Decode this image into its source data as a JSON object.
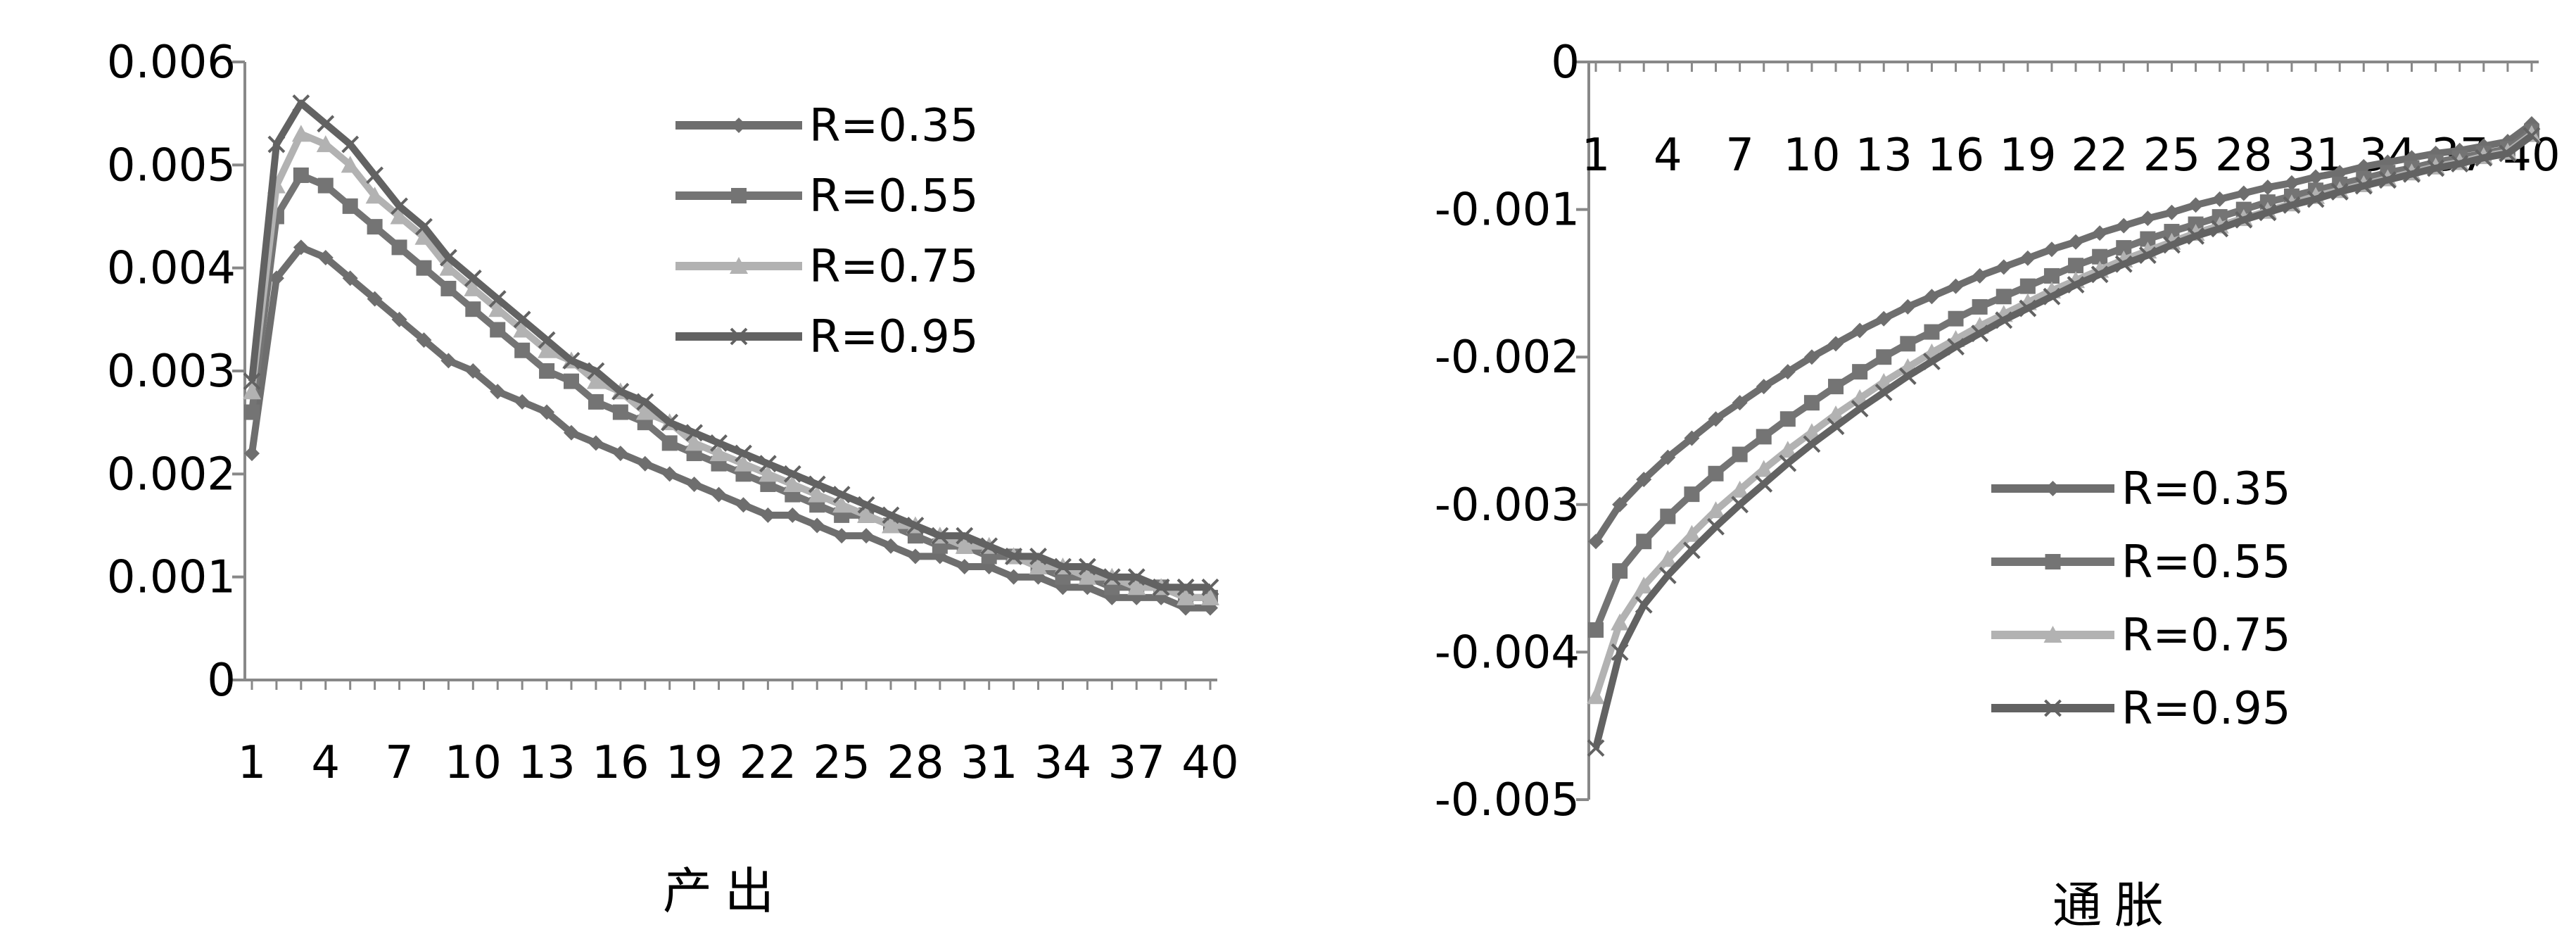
{
  "chart_data": [
    {
      "type": "line",
      "title": "",
      "xlabel": "产出",
      "ylabel": "",
      "ylim": [
        0,
        0.006
      ],
      "yticks": [
        "0",
        "0.001",
        "0.002",
        "0.003",
        "0.004",
        "0.005",
        "0.006"
      ],
      "xticks": [
        "1",
        "4",
        "7",
        "10",
        "13",
        "16",
        "19",
        "22",
        "25",
        "28",
        "31",
        "34",
        "37",
        "40"
      ],
      "x": [
        1,
        2,
        3,
        4,
        5,
        6,
        7,
        8,
        9,
        10,
        11,
        12,
        13,
        14,
        15,
        16,
        17,
        18,
        19,
        20,
        21,
        22,
        23,
        24,
        25,
        26,
        27,
        28,
        29,
        30,
        31,
        32,
        33,
        34,
        35,
        36,
        37,
        38,
        39,
        40
      ],
      "legend_position": "top-right",
      "series": [
        {
          "name": "R=0.35",
          "color": "#6e6e6e",
          "marker": "diamond",
          "values": [
            0.0022,
            0.0039,
            0.0042,
            0.0041,
            0.0039,
            0.0037,
            0.0035,
            0.0033,
            0.0031,
            0.003,
            0.0028,
            0.0027,
            0.0026,
            0.0024,
            0.0023,
            0.0022,
            0.0021,
            0.002,
            0.0019,
            0.0018,
            0.0017,
            0.0016,
            0.0016,
            0.0015,
            0.0014,
            0.0014,
            0.0013,
            0.0012,
            0.0012,
            0.0011,
            0.0011,
            0.001,
            0.001,
            0.0009,
            0.0009,
            0.0008,
            0.0008,
            0.0008,
            0.0007,
            0.0007
          ]
        },
        {
          "name": "R=0.55",
          "color": "#747474",
          "marker": "square",
          "values": [
            0.0026,
            0.0045,
            0.0049,
            0.0048,
            0.0046,
            0.0044,
            0.0042,
            0.004,
            0.0038,
            0.0036,
            0.0034,
            0.0032,
            0.003,
            0.0029,
            0.0027,
            0.0026,
            0.0025,
            0.0023,
            0.0022,
            0.0021,
            0.002,
            0.0019,
            0.0018,
            0.0017,
            0.0016,
            0.0016,
            0.0015,
            0.0014,
            0.0013,
            0.0013,
            0.0012,
            0.0012,
            0.0011,
            0.001,
            0.001,
            0.0009,
            0.0009,
            0.0009,
            0.0008,
            0.0008
          ]
        },
        {
          "name": "R=0.75",
          "color": "#b2b2b2",
          "marker": "triangle",
          "values": [
            0.0028,
            0.0048,
            0.0053,
            0.0052,
            0.005,
            0.0047,
            0.0045,
            0.0043,
            0.004,
            0.0038,
            0.0036,
            0.0034,
            0.0032,
            0.0031,
            0.0029,
            0.0028,
            0.0026,
            0.0025,
            0.0023,
            0.0022,
            0.0021,
            0.002,
            0.0019,
            0.0018,
            0.0017,
            0.0016,
            0.0015,
            0.0015,
            0.0014,
            0.0013,
            0.0013,
            0.0012,
            0.0011,
            0.0011,
            0.001,
            0.001,
            0.0009,
            0.0009,
            0.0008,
            0.0008
          ]
        },
        {
          "name": "R=0.95",
          "color": "#626262",
          "marker": "cross",
          "values": [
            0.0029,
            0.0052,
            0.0056,
            0.0054,
            0.0052,
            0.0049,
            0.0046,
            0.0044,
            0.0041,
            0.0039,
            0.0037,
            0.0035,
            0.0033,
            0.0031,
            0.003,
            0.0028,
            0.0027,
            0.0025,
            0.0024,
            0.0023,
            0.0022,
            0.0021,
            0.002,
            0.0019,
            0.0018,
            0.0017,
            0.0016,
            0.0015,
            0.0014,
            0.0014,
            0.0013,
            0.0012,
            0.0012,
            0.0011,
            0.0011,
            0.001,
            0.001,
            0.0009,
            0.0009,
            0.0009
          ]
        }
      ]
    },
    {
      "type": "line",
      "title": "",
      "xlabel": "通胀",
      "ylabel": "",
      "ylim": [
        -0.005,
        0
      ],
      "yticks": [
        "0",
        "-0.001",
        "-0.002",
        "-0.003",
        "-0.004",
        "-0.005"
      ],
      "xticks": [
        "1",
        "4",
        "7",
        "10",
        "13",
        "16",
        "19",
        "22",
        "25",
        "28",
        "31",
        "34",
        "37",
        "40"
      ],
      "x": [
        1,
        2,
        3,
        4,
        5,
        6,
        7,
        8,
        9,
        10,
        11,
        12,
        13,
        14,
        15,
        16,
        17,
        18,
        19,
        20,
        21,
        22,
        23,
        24,
        25,
        26,
        27,
        28,
        29,
        30,
        31,
        32,
        33,
        34,
        35,
        36,
        37,
        38,
        39,
        40
      ],
      "legend_position": "bottom-right",
      "series": [
        {
          "name": "R=0.35",
          "color": "#6e6e6e",
          "marker": "diamond",
          "values": [
            -0.00325,
            -0.003,
            -0.00283,
            -0.00268,
            -0.00255,
            -0.00242,
            -0.00231,
            -0.0022,
            -0.0021,
            -0.002,
            -0.00191,
            -0.00182,
            -0.00174,
            -0.00166,
            -0.00159,
            -0.00152,
            -0.00145,
            -0.00139,
            -0.00133,
            -0.00127,
            -0.00122,
            -0.00116,
            -0.00111,
            -0.00106,
            -0.00102,
            -0.00097,
            -0.00093,
            -0.00089,
            -0.00085,
            -0.00082,
            -0.00078,
            -0.00075,
            -0.00071,
            -0.00068,
            -0.00065,
            -0.00062,
            -0.0006,
            -0.00057,
            -0.00054,
            -0.00042
          ]
        },
        {
          "name": "R=0.55",
          "color": "#747474",
          "marker": "square",
          "values": [
            -0.00385,
            -0.00345,
            -0.00325,
            -0.00308,
            -0.00293,
            -0.00279,
            -0.00266,
            -0.00254,
            -0.00242,
            -0.00231,
            -0.0022,
            -0.0021,
            -0.002,
            -0.00191,
            -0.00183,
            -0.00174,
            -0.00166,
            -0.00159,
            -0.00152,
            -0.00145,
            -0.00138,
            -0.00132,
            -0.00126,
            -0.0012,
            -0.00115,
            -0.0011,
            -0.00105,
            -0.001,
            -0.00095,
            -0.00091,
            -0.00087,
            -0.00083,
            -0.00079,
            -0.00075,
            -0.00072,
            -0.00068,
            -0.00065,
            -0.00062,
            -0.00059,
            -0.00047
          ]
        },
        {
          "name": "R=0.75",
          "color": "#b2b2b2",
          "marker": "triangle",
          "values": [
            -0.0043,
            -0.0038,
            -0.00355,
            -0.00337,
            -0.0032,
            -0.00304,
            -0.0029,
            -0.00276,
            -0.00263,
            -0.00251,
            -0.00239,
            -0.00228,
            -0.00217,
            -0.00207,
            -0.00197,
            -0.00188,
            -0.00179,
            -0.00171,
            -0.00163,
            -0.00155,
            -0.00148,
            -0.00141,
            -0.00134,
            -0.00128,
            -0.00122,
            -0.00116,
            -0.00111,
            -0.00106,
            -0.00101,
            -0.00096,
            -0.00091,
            -0.00087,
            -0.00083,
            -0.00079,
            -0.00075,
            -0.00071,
            -0.00068,
            -0.00064,
            -0.00061,
            -0.00049
          ]
        },
        {
          "name": "R=0.95",
          "color": "#626262",
          "marker": "cross",
          "values": [
            -0.00465,
            -0.004,
            -0.00368,
            -0.00348,
            -0.00331,
            -0.00315,
            -0.003,
            -0.00286,
            -0.00272,
            -0.00259,
            -0.00247,
            -0.00235,
            -0.00224,
            -0.00213,
            -0.00203,
            -0.00193,
            -0.00184,
            -0.00175,
            -0.00167,
            -0.00159,
            -0.00151,
            -0.00144,
            -0.00137,
            -0.00131,
            -0.00124,
            -0.00118,
            -0.00113,
            -0.00107,
            -0.00102,
            -0.00097,
            -0.00093,
            -0.00088,
            -0.00084,
            -0.0008,
            -0.00076,
            -0.00072,
            -0.00069,
            -0.00065,
            -0.00062,
            -0.0005
          ]
        }
      ]
    }
  ]
}
